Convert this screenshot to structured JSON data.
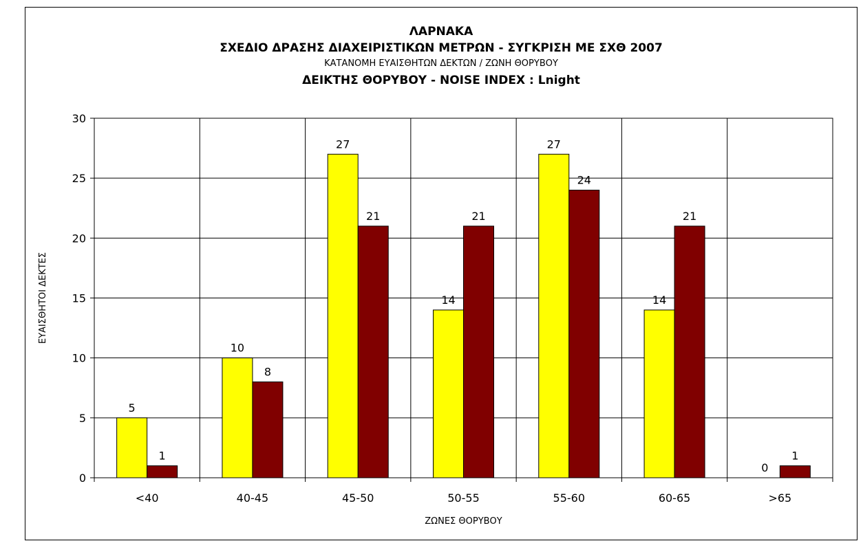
{
  "chart_data": {
    "type": "bar",
    "title_lines": [
      "ΛΑΡΝΑΚΑ",
      "ΣΧΕΔΙΟ ΔΡΑΣΗΣ ΔΙΑΧΕΙΡΙΣΤΙΚΩΝ ΜΕΤΡΩΝ - ΣΥΓΚΡΙΣΗ ΜΕ ΣΧΘ 2007",
      "ΚΑΤΑΝΟΜΗ ΕΥΑΙΣΘΗΤΩΝ  ΔΕΚΤΩΝ / ΖΩΝΗ ΘΟΡΥΒΟΥ",
      "ΔΕΙΚΤΗΣ ΘΟΡΥΒΟΥ - NOISE INDEX   :   Lnight"
    ],
    "xlabel": "ΖΩΝΕΣ ΘΟΡΥΒΟΥ",
    "ylabel": "ΕΥΑΙΣΘΗΤΟΙ ΔΕΚΤΕΣ",
    "categories": [
      "<40",
      "40-45",
      "45-50",
      "50-55",
      "55-60",
      "60-65",
      ">65"
    ],
    "series": [
      {
        "values": [
          5,
          10,
          27,
          14,
          27,
          14,
          0
        ],
        "color": "#ffff00"
      },
      {
        "values": [
          1,
          8,
          21,
          21,
          24,
          21,
          1
        ],
        "color": "#800000"
      }
    ],
    "ylim": [
      0,
      30
    ],
    "yticks": [
      0,
      5,
      10,
      15,
      20,
      25,
      30
    ],
    "grid": true,
    "legend": "none"
  }
}
